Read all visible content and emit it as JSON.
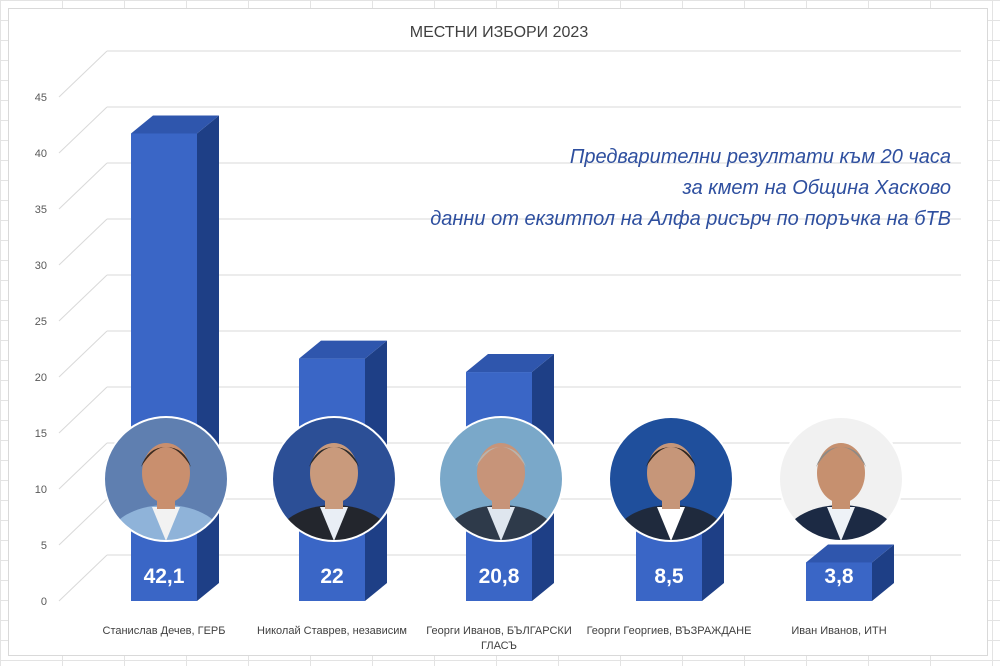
{
  "chart_data": {
    "type": "bar",
    "title": "МЕСТНИ ИЗБОРИ 2023",
    "categories": [
      "Станислав Дечев, ГЕРБ",
      "Николай Ставрев, независим",
      "Георги Иванов, БЪЛГАРСКИ ГЛАСЪ",
      "Георги Георгиев, ВЪЗРАЖДАНЕ",
      "Иван Иванов, ИТН"
    ],
    "category_lines": [
      [
        "Станислав Дечев, ГЕРБ"
      ],
      [
        "Николай Ставрев, независим"
      ],
      [
        "Георги Иванов, БЪЛГАРСКИ",
        "ГЛАСЪ"
      ],
      [
        "Георги Георгиев, ВЪЗРАЖДАНЕ"
      ],
      [
        "Иван Иванов, ИТН"
      ]
    ],
    "values": [
      42.1,
      22,
      20.8,
      8.5,
      3.8
    ],
    "value_labels": [
      "42,1",
      "22",
      "20,8",
      "8,5",
      "3,8"
    ],
    "xlabel": "",
    "ylabel": "",
    "ylim": [
      0,
      45
    ],
    "yticks": [
      0,
      5,
      10,
      15,
      20,
      25,
      30,
      35,
      40,
      45
    ],
    "grid": true,
    "style": "3d-column",
    "bar_color": "#3a66c6",
    "bar_top_color": "#2f56ad",
    "bar_side_color": "#1e3f86",
    "annotation_lines": [
      "Предварителни резултати към 20 часа",
      "за кмет на Община Хасково",
      "данни от екзитпол на Алфа рисърч по поръчка на бТВ"
    ],
    "annotation_color": "#2e4f9f",
    "photos": [
      {
        "name": "portrait-stanislav-dechev",
        "bg": "#5f7fb0",
        "suit": "#8fb3d9",
        "shirt": "#f2f2f2",
        "skin": "#c98f6e",
        "hair": "#3a2a20"
      },
      {
        "name": "portrait-nikolay-stavrev",
        "bg": "#2c4f96",
        "suit": "#23262d",
        "shirt": "#e9eef5",
        "skin": "#c99a7c",
        "hair": "#2a2a2a"
      },
      {
        "name": "portrait-georgi-ivanov",
        "bg": "#7aa8c9",
        "suit": "#2e3a4a",
        "shirt": "#dfe6ee",
        "skin": "#c79479",
        "hair": "#b9b4ad"
      },
      {
        "name": "portrait-georgi-georgiev",
        "bg": "#1f4f9c",
        "suit": "#1f2a3d",
        "shirt": "#ffffff",
        "skin": "#c69679",
        "hair": "#2a2420"
      },
      {
        "name": "portrait-ivan-ivanov",
        "bg": "#f1f1f1",
        "suit": "#1c2a44",
        "shirt": "#eef2f7",
        "skin": "#c6906f",
        "hair": "#8d8a86"
      }
    ]
  }
}
